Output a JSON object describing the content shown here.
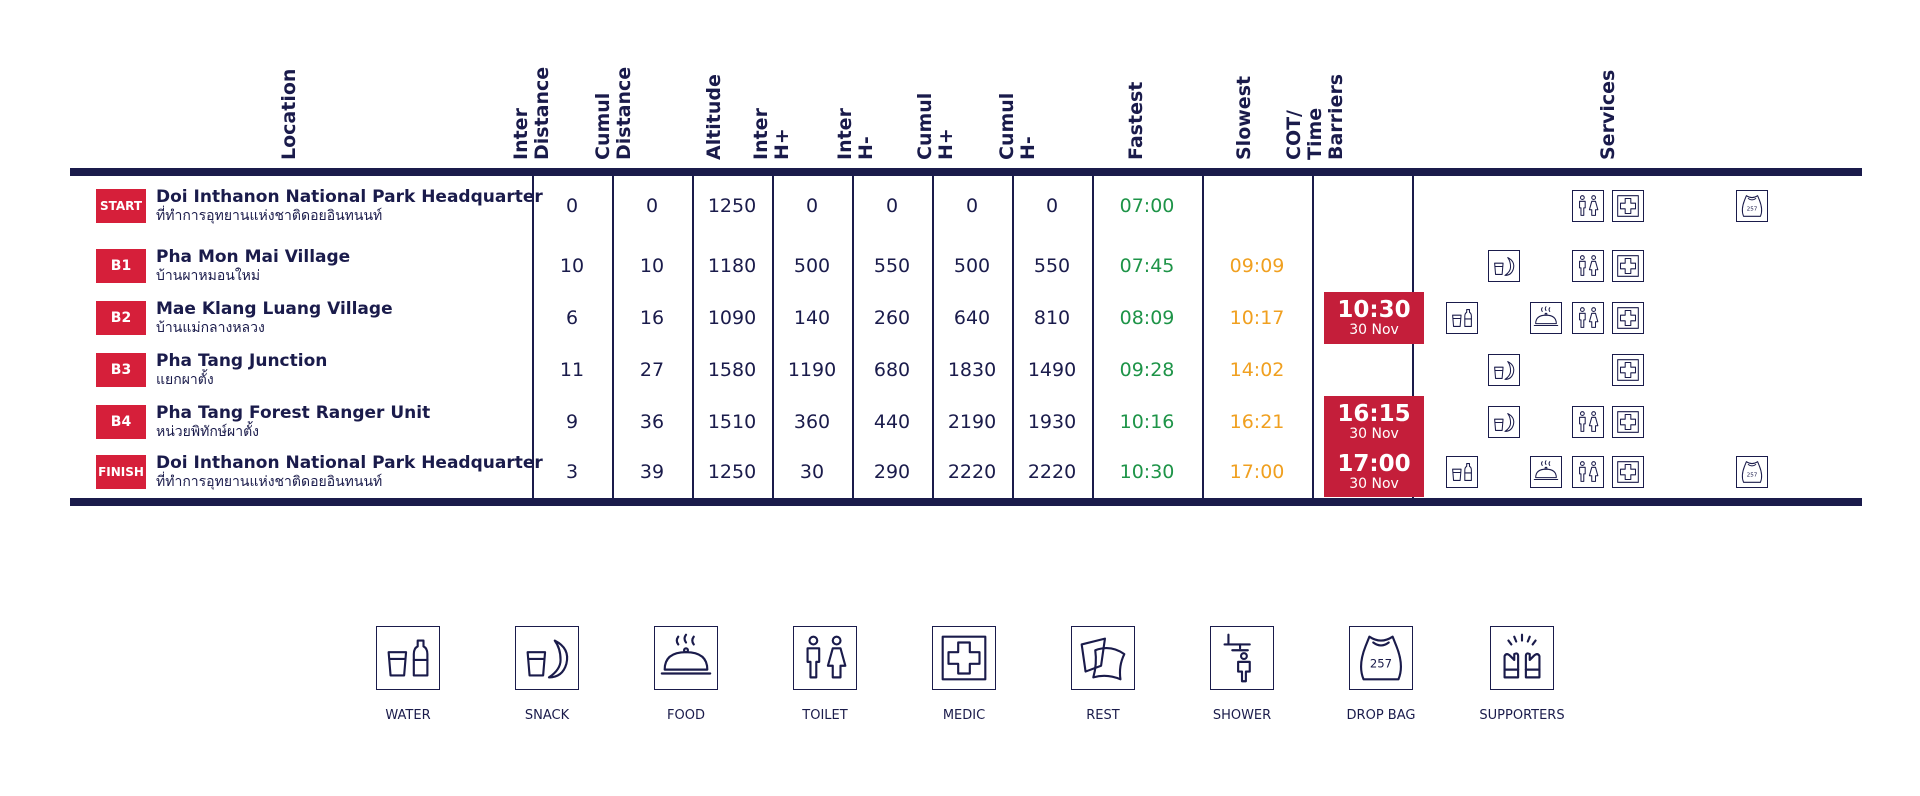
{
  "headers": {
    "location": "Location",
    "inter_distance": [
      "Inter",
      "Distance"
    ],
    "cumul_distance": [
      "Cumul",
      "Distance"
    ],
    "altitude": "Altitude",
    "inter_hplus": [
      "Inter",
      "H+"
    ],
    "inter_hminus": [
      "Inter",
      "H-"
    ],
    "cumul_hplus": [
      "Cumul",
      "H+"
    ],
    "cumul_hminus": [
      "Cumul",
      "H-"
    ],
    "fastest": "Fastest",
    "slowest": "Slowest",
    "cot": [
      "COT/",
      "Time",
      "Barriers"
    ],
    "services": "Services"
  },
  "rows": [
    {
      "badge": "START",
      "name_en": "Doi Inthanon National Park Headquarter",
      "name_th": "ที่ทำการอุทยานแห่งชาติดอยอินทนนท์",
      "inter_dist": "0",
      "cumul_dist": "0",
      "altitude": "1250",
      "inter_hplus": "0",
      "inter_hminus": "0",
      "cumul_hplus": "0",
      "cumul_hminus": "0",
      "fastest": "07:00",
      "slowest": "",
      "cot_time": "",
      "cot_date": "",
      "services": [
        "toilet",
        "medic",
        "dropbag"
      ]
    },
    {
      "badge": "B1",
      "name_en": "Pha Mon Mai Village",
      "name_th": "บ้านผาหมอนใหม่",
      "inter_dist": "10",
      "cumul_dist": "10",
      "altitude": "1180",
      "inter_hplus": "500",
      "inter_hminus": "550",
      "cumul_hplus": "500",
      "cumul_hminus": "550",
      "fastest": "07:45",
      "slowest": "09:09",
      "cot_time": "",
      "cot_date": "",
      "services": [
        "snack",
        "toilet",
        "medic"
      ]
    },
    {
      "badge": "B2",
      "name_en": "Mae Klang Luang Village",
      "name_th": "บ้านแม่กลางหลวง",
      "inter_dist": "6",
      "cumul_dist": "16",
      "altitude": "1090",
      "inter_hplus": "140",
      "inter_hminus": "260",
      "cumul_hplus": "640",
      "cumul_hminus": "810",
      "fastest": "08:09",
      "slowest": "10:17",
      "cot_time": "10:30",
      "cot_date": "30 Nov",
      "services": [
        "water",
        "food",
        "toilet",
        "medic"
      ]
    },
    {
      "badge": "B3",
      "name_en": "Pha Tang Junction",
      "name_th": "แยกผาตั้ง",
      "inter_dist": "11",
      "cumul_dist": "27",
      "altitude": "1580",
      "inter_hplus": "1190",
      "inter_hminus": "680",
      "cumul_hplus": "1830",
      "cumul_hminus": "1490",
      "fastest": "09:28",
      "slowest": "14:02",
      "cot_time": "",
      "cot_date": "",
      "services": [
        "snack",
        "medic"
      ]
    },
    {
      "badge": "B4",
      "name_en": "Pha Tang Forest Ranger Unit",
      "name_th": "หน่วยพิทักษ์ผาตั้ง",
      "inter_dist": "9",
      "cumul_dist": "36",
      "altitude": "1510",
      "inter_hplus": "360",
      "inter_hminus": "440",
      "cumul_hplus": "2190",
      "cumul_hminus": "1930",
      "fastest": "10:16",
      "slowest": "16:21",
      "cot_time": "16:15",
      "cot_date": "30 Nov",
      "services": [
        "snack",
        "toilet",
        "medic"
      ]
    },
    {
      "badge": "FINISH",
      "name_en": "Doi Inthanon National Park Headquarter",
      "name_th": "ที่ทำการอุทยานแห่งชาติดอยอินทนนท์",
      "inter_dist": "3",
      "cumul_dist": "39",
      "altitude": "1250",
      "inter_hplus": "30",
      "inter_hminus": "290",
      "cumul_hplus": "2220",
      "cumul_hminus": "2220",
      "fastest": "10:30",
      "slowest": "17:00",
      "cot_time": "17:00",
      "cot_date": "30 Nov",
      "services": [
        "water",
        "food",
        "toilet",
        "medic",
        "dropbag"
      ]
    }
  ],
  "legend": [
    {
      "icon": "water",
      "label": "WATER"
    },
    {
      "icon": "snack",
      "label": "SNACK"
    },
    {
      "icon": "food",
      "label": "FOOD"
    },
    {
      "icon": "toilet",
      "label": "TOILET"
    },
    {
      "icon": "medic",
      "label": "MEDIC"
    },
    {
      "icon": "rest",
      "label": "REST"
    },
    {
      "icon": "shower",
      "label": "SHOWER"
    },
    {
      "icon": "dropbag",
      "label": "DROP BAG"
    },
    {
      "icon": "supporters",
      "label": "SUPPORTERS"
    }
  ],
  "dropbag_number": "257",
  "colors": {
    "navy": "#1a1b4b",
    "red": "#d61f3a",
    "cot_red": "#c41e3a",
    "green": "#1e9448",
    "orange": "#f0a020"
  }
}
